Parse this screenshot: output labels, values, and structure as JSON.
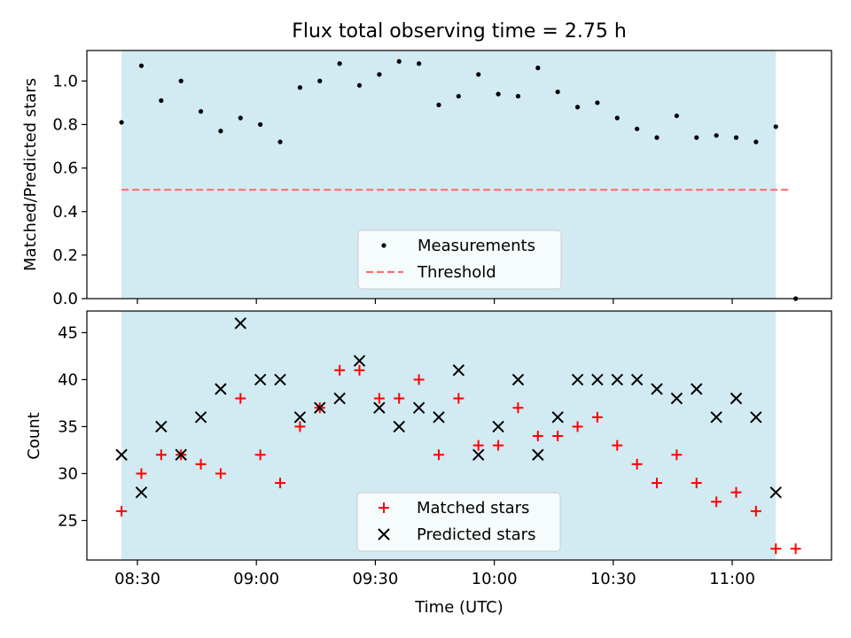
{
  "chart_data": {
    "title": "Flux total observing time = 2.75 h",
    "xlabel": "Time (UTC)",
    "x_tick_labels": [
      "08:30",
      "09:00",
      "09:30",
      "10:00",
      "10:30",
      "11:00"
    ],
    "x_tick_times": [
      "08:30",
      "09:00",
      "09:30",
      "10:00",
      "10:30",
      "11:00"
    ],
    "shaded_span": {
      "start": "08:26",
      "end": "11:11",
      "color": "#add8e6"
    },
    "panels": [
      {
        "type": "scatter",
        "ylabel": "Matched/Predicted stars",
        "ylim": [
          0,
          1.14
        ],
        "yticks": [
          0.0,
          0.2,
          0.4,
          0.6,
          0.8,
          1.0
        ],
        "ytick_labels": [
          "0.0",
          "0.2",
          "0.4",
          "0.6",
          "0.8",
          "1.0"
        ],
        "legend_position": "bottom-center",
        "series": [
          {
            "name": "Measurements",
            "marker": "dot",
            "color": "#000000",
            "x": [
              "08:26",
              "08:31",
              "08:36",
              "08:41",
              "08:46",
              "08:51",
              "08:56",
              "09:01",
              "09:06",
              "09:11",
              "09:16",
              "09:21",
              "09:26",
              "09:31",
              "09:36",
              "09:41",
              "09:46",
              "09:51",
              "09:56",
              "10:01",
              "10:06",
              "10:11",
              "10:16",
              "10:21",
              "10:26",
              "10:31",
              "10:36",
              "10:41",
              "10:46",
              "10:51",
              "10:56",
              "11:01",
              "11:06",
              "11:11",
              "11:16"
            ],
            "y": [
              0.81,
              1.07,
              0.91,
              1.0,
              0.86,
              0.77,
              0.83,
              0.8,
              0.72,
              0.97,
              1.0,
              1.08,
              0.98,
              1.03,
              1.09,
              1.08,
              0.89,
              0.93,
              1.03,
              0.94,
              0.93,
              1.06,
              0.95,
              0.88,
              0.9,
              0.83,
              0.78,
              0.74,
              0.84,
              0.74,
              0.75,
              0.74,
              0.72,
              0.79,
              0.0
            ]
          },
          {
            "name": "Threshold",
            "type": "line",
            "style": "dashed",
            "color": "#ff7070",
            "x": [
              "08:26",
              "11:15"
            ],
            "y": [
              0.5,
              0.5
            ]
          }
        ]
      },
      {
        "type": "scatter",
        "ylabel": "Count",
        "ylim": [
          20.8,
          47.3
        ],
        "yticks": [
          25,
          30,
          35,
          40,
          45
        ],
        "ytick_labels": [
          "25",
          "30",
          "35",
          "40",
          "45"
        ],
        "legend_position": "bottom-center",
        "series": [
          {
            "name": "Matched stars",
            "marker": "plus",
            "color": "#ff0000",
            "x": [
              "08:26",
              "08:31",
              "08:36",
              "08:41",
              "08:46",
              "08:51",
              "08:56",
              "09:01",
              "09:06",
              "09:11",
              "09:16",
              "09:21",
              "09:26",
              "09:31",
              "09:36",
              "09:41",
              "09:46",
              "09:51",
              "09:56",
              "10:01",
              "10:06",
              "10:11",
              "10:16",
              "10:21",
              "10:26",
              "10:31",
              "10:36",
              "10:41",
              "10:46",
              "10:51",
              "10:56",
              "11:01",
              "11:06",
              "11:11",
              "11:16"
            ],
            "y": [
              26,
              30,
              32,
              32,
              31,
              30,
              38,
              32,
              29,
              35,
              37,
              41,
              41,
              38,
              38,
              40,
              32,
              38,
              33,
              33,
              37,
              34,
              34,
              35,
              36,
              33,
              31,
              29,
              32,
              29,
              27,
              28,
              26,
              22,
              22
            ]
          },
          {
            "name": "Predicted stars",
            "marker": "x",
            "color": "#000000",
            "x": [
              "08:26",
              "08:31",
              "08:36",
              "08:41",
              "08:46",
              "08:51",
              "08:56",
              "09:01",
              "09:06",
              "09:11",
              "09:16",
              "09:21",
              "09:26",
              "09:31",
              "09:36",
              "09:41",
              "09:46",
              "09:51",
              "09:56",
              "10:01",
              "10:06",
              "10:11",
              "10:16",
              "10:21",
              "10:26",
              "10:31",
              "10:36",
              "10:41",
              "10:46",
              "10:51",
              "10:56",
              "11:01",
              "11:06",
              "11:11"
            ],
            "y": [
              32,
              28,
              35,
              32,
              36,
              39,
              46,
              40,
              40,
              36,
              37,
              38,
              42,
              37,
              35,
              37,
              36,
              41,
              32,
              35,
              40,
              32,
              36,
              40,
              40,
              40,
              40,
              39,
              38,
              39,
              36,
              38,
              36,
              28
            ]
          }
        ]
      }
    ]
  }
}
